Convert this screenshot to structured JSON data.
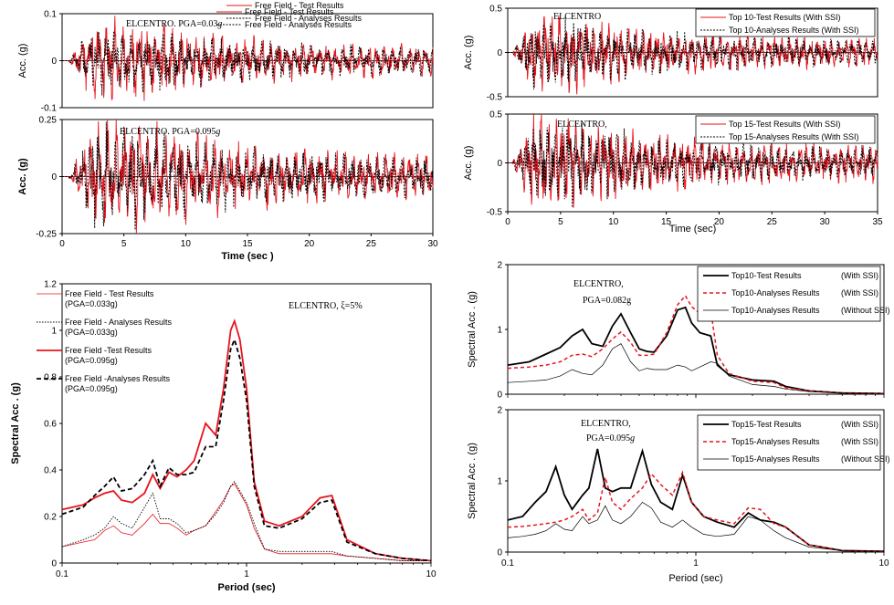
{
  "colors": {
    "test": "#e8141e",
    "analysis": "#000000",
    "without_ssi": "#000000"
  },
  "chart_data": [
    {
      "id": "p1",
      "type": "line",
      "ylabel": "Acc. (g)",
      "ylim": [
        -0.1,
        0.1
      ],
      "yticks": [
        "-0.1",
        "0",
        "0.1"
      ],
      "xlim": [
        0,
        30
      ],
      "annotation": "ELCENTRO. PGA=0.03",
      "annotation_sub": "g",
      "series": [
        {
          "name": "Free Field - Test Results",
          "amplitude": 0.07
        },
        {
          "name": "Free Field - Analyses Results",
          "amplitude": 0.06
        }
      ]
    },
    {
      "id": "p2",
      "type": "line",
      "ylabel": "Acc. (g)",
      "xlabel": "Time (sec )",
      "ylim": [
        -0.25,
        0.25
      ],
      "yticks": [
        "-0.25",
        "0",
        "0.25"
      ],
      "xlim": [
        0,
        30
      ],
      "xticks": [
        "0",
        "5",
        "10",
        "15",
        "20",
        "25",
        "30"
      ],
      "annotation": "ELCENTRO. PGA=0.095",
      "annotation_sub": "g",
      "series": [
        {
          "name": "Free Field - Test Results",
          "amplitude": 0.21
        },
        {
          "name": "Free Field - Analyses Results",
          "amplitude": 0.18
        }
      ]
    },
    {
      "id": "p3",
      "type": "line",
      "ylabel": "Acc. (g)",
      "ylim": [
        -0.5,
        0.5
      ],
      "yticks": [
        "-0.5",
        "0",
        "0.5"
      ],
      "xlim": [
        0,
        35
      ],
      "annotation": "ELCENTRO",
      "series": [
        {
          "name": "Top 10-Test Results (With SSI)",
          "amplitude": 0.37
        },
        {
          "name": "Top 10-Analyses Results (With SSI)",
          "amplitude": 0.33
        }
      ]
    },
    {
      "id": "p4",
      "type": "line",
      "ylabel": "Acc. (g)",
      "xlabel": "Time  (sec)",
      "ylim": [
        -0.5,
        0.5
      ],
      "yticks": [
        "-0.5",
        "0",
        "0.5"
      ],
      "xlim": [
        0,
        35
      ],
      "xticks": [
        "0",
        "5",
        "10",
        "15",
        "20",
        "25",
        "30",
        "35"
      ],
      "annotation": "ELCENTRO,",
      "series": [
        {
          "name": "Top 15-Test Results  (With SSI)",
          "amplitude": 0.42
        },
        {
          "name": "Top 15-Analyses Results  (With SSI)",
          "amplitude": 0.36
        }
      ]
    },
    {
      "id": "p5",
      "type": "line",
      "xscale": "log",
      "ylabel": "Spectral Acc . (g)",
      "xlabel": "Period (sec)",
      "ylim": [
        0,
        1.2
      ],
      "yticks": [
        "0",
        "0.2",
        "0.4",
        "0.6",
        "0.8",
        "1",
        "1.2"
      ],
      "xlim": [
        0.1,
        10
      ],
      "xticks": [
        "0.1",
        "1",
        "10"
      ],
      "annotation": "ELCENTRO, ξ=5%",
      "series": [
        {
          "name": "Free Field - Test Results",
          "name2": "(PGA=0.033g)",
          "x": [
            0.1,
            0.13,
            0.15,
            0.17,
            0.19,
            0.21,
            0.24,
            0.28,
            0.31,
            0.34,
            0.38,
            0.42,
            0.47,
            0.52,
            0.6,
            0.68,
            0.75,
            0.82,
            0.86,
            0.92,
            1.0,
            1.1,
            1.25,
            1.5,
            2.0,
            2.5,
            2.9,
            3.5,
            5.0,
            7.0,
            10.0
          ],
          "y": [
            0.07,
            0.09,
            0.1,
            0.14,
            0.16,
            0.13,
            0.12,
            0.17,
            0.21,
            0.17,
            0.17,
            0.15,
            0.12,
            0.14,
            0.16,
            0.22,
            0.27,
            0.33,
            0.34,
            0.3,
            0.25,
            0.15,
            0.06,
            0.04,
            0.04,
            0.04,
            0.04,
            0.03,
            0.02,
            0.01,
            0.01
          ]
        },
        {
          "name": "Free Field - Analyses Results",
          "name2": "(PGA=0.033g)",
          "x": [
            0.1,
            0.13,
            0.15,
            0.17,
            0.19,
            0.21,
            0.24,
            0.28,
            0.31,
            0.34,
            0.38,
            0.42,
            0.47,
            0.52,
            0.6,
            0.68,
            0.75,
            0.82,
            0.86,
            0.92,
            1.0,
            1.1,
            1.25,
            1.5,
            2.0,
            2.5,
            2.9,
            3.5,
            5.0,
            7.0,
            10.0
          ],
          "y": [
            0.07,
            0.1,
            0.12,
            0.15,
            0.2,
            0.17,
            0.15,
            0.24,
            0.3,
            0.19,
            0.19,
            0.17,
            0.13,
            0.14,
            0.16,
            0.21,
            0.26,
            0.33,
            0.35,
            0.31,
            0.26,
            0.17,
            0.06,
            0.05,
            0.05,
            0.05,
            0.05,
            0.03,
            0.02,
            0.01,
            0.01
          ]
        },
        {
          "name": "Free Field -Test Results",
          "name2": "(PGA=0.095g)",
          "x": [
            0.1,
            0.13,
            0.15,
            0.17,
            0.19,
            0.21,
            0.24,
            0.28,
            0.31,
            0.34,
            0.38,
            0.42,
            0.47,
            0.52,
            0.6,
            0.68,
            0.75,
            0.82,
            0.86,
            0.92,
            1.0,
            1.1,
            1.25,
            1.5,
            2.0,
            2.5,
            2.9,
            3.5,
            5.0,
            7.0,
            10.0
          ],
          "y": [
            0.23,
            0.25,
            0.28,
            0.3,
            0.31,
            0.27,
            0.26,
            0.3,
            0.38,
            0.32,
            0.39,
            0.37,
            0.4,
            0.44,
            0.6,
            0.55,
            0.75,
            1.0,
            1.04,
            0.96,
            0.75,
            0.35,
            0.18,
            0.16,
            0.2,
            0.28,
            0.29,
            0.1,
            0.04,
            0.02,
            0.01
          ]
        },
        {
          "name": "Free Field -Analyses Results",
          "name2": "(PGA=0.095g)",
          "x": [
            0.1,
            0.13,
            0.15,
            0.17,
            0.19,
            0.21,
            0.24,
            0.28,
            0.31,
            0.34,
            0.38,
            0.42,
            0.47,
            0.52,
            0.6,
            0.68,
            0.75,
            0.82,
            0.86,
            0.92,
            1.0,
            1.1,
            1.25,
            1.5,
            2.0,
            2.5,
            2.9,
            3.5,
            5.0,
            7.0,
            10.0
          ],
          "y": [
            0.21,
            0.24,
            0.29,
            0.33,
            0.37,
            0.31,
            0.32,
            0.38,
            0.44,
            0.33,
            0.41,
            0.38,
            0.38,
            0.39,
            0.5,
            0.5,
            0.7,
            0.92,
            0.96,
            0.88,
            0.7,
            0.33,
            0.16,
            0.15,
            0.19,
            0.26,
            0.27,
            0.09,
            0.04,
            0.02,
            0.01
          ]
        }
      ]
    },
    {
      "id": "p6",
      "type": "line",
      "xscale": "log",
      "ylabel": "Spectral Acc . (g)",
      "ylim": [
        0,
        2
      ],
      "yticks": [
        "0",
        "1",
        "2"
      ],
      "xlim": [
        0.1,
        10
      ],
      "xticks": [],
      "annotation": "ELCENTRO,",
      "annotation2": "PGA=0.082g",
      "series": [
        {
          "name": "Top10-Test Results",
          "name2": "(With SSI)",
          "x": [
            0.1,
            0.13,
            0.16,
            0.19,
            0.22,
            0.25,
            0.28,
            0.32,
            0.36,
            0.4,
            0.45,
            0.5,
            0.55,
            0.6,
            0.7,
            0.8,
            0.88,
            0.95,
            1.05,
            1.2,
            1.3,
            1.5,
            2.0,
            2.6,
            3.0,
            4.0,
            6.0,
            10.0
          ],
          "y": [
            0.45,
            0.5,
            0.62,
            0.72,
            0.9,
            1.0,
            0.78,
            0.74,
            1.05,
            1.24,
            0.95,
            0.7,
            0.66,
            0.65,
            0.9,
            1.3,
            1.34,
            1.1,
            0.95,
            0.9,
            0.45,
            0.3,
            0.22,
            0.2,
            0.12,
            0.05,
            0.02,
            0.01
          ]
        },
        {
          "name": "Top10-Analyses Results",
          "name2": "(With SSI)",
          "x": [
            0.1,
            0.13,
            0.16,
            0.19,
            0.22,
            0.25,
            0.28,
            0.32,
            0.36,
            0.4,
            0.45,
            0.5,
            0.55,
            0.6,
            0.7,
            0.8,
            0.88,
            0.95,
            1.05,
            1.2,
            1.3,
            1.5,
            2.0,
            2.6,
            3.0,
            4.0,
            6.0,
            10.0
          ],
          "y": [
            0.4,
            0.42,
            0.45,
            0.5,
            0.6,
            0.62,
            0.58,
            0.7,
            0.85,
            0.96,
            0.8,
            0.6,
            0.6,
            0.62,
            0.95,
            1.38,
            1.52,
            1.35,
            1.25,
            1.3,
            0.6,
            0.32,
            0.2,
            0.18,
            0.1,
            0.05,
            0.02,
            0.01
          ]
        },
        {
          "name": "Top10-Analyses Results",
          "name2": "(Without SSI)",
          "x": [
            0.1,
            0.13,
            0.16,
            0.19,
            0.22,
            0.25,
            0.28,
            0.32,
            0.36,
            0.4,
            0.45,
            0.5,
            0.55,
            0.6,
            0.7,
            0.8,
            0.88,
            0.95,
            1.05,
            1.2,
            1.3,
            1.5,
            2.0,
            2.6,
            3.0,
            4.0,
            6.0,
            10.0
          ],
          "y": [
            0.18,
            0.2,
            0.22,
            0.28,
            0.38,
            0.32,
            0.3,
            0.45,
            0.7,
            0.78,
            0.5,
            0.36,
            0.4,
            0.38,
            0.38,
            0.45,
            0.42,
            0.36,
            0.42,
            0.5,
            0.48,
            0.28,
            0.15,
            0.12,
            0.08,
            0.04,
            0.02,
            0.01
          ]
        }
      ]
    },
    {
      "id": "p7",
      "type": "line",
      "xscale": "log",
      "ylabel": "Spectral Acc . (g)",
      "xlabel": "Period (sec)",
      "ylim": [
        0,
        2
      ],
      "yticks": [
        "0",
        "1",
        "2"
      ],
      "xlim": [
        0.1,
        10
      ],
      "xticks": [
        "0.1",
        "1",
        "10"
      ],
      "annotation": "ELCENTRO,",
      "annotation2": "PGA=0.095",
      "annotation2_sub": "g",
      "series": [
        {
          "name": "Top15-Test Results",
          "name2": "(With SSI)",
          "x": [
            0.1,
            0.12,
            0.14,
            0.16,
            0.18,
            0.2,
            0.22,
            0.25,
            0.27,
            0.3,
            0.33,
            0.36,
            0.4,
            0.45,
            0.52,
            0.58,
            0.65,
            0.75,
            0.85,
            0.95,
            1.1,
            1.3,
            1.6,
            1.9,
            2.2,
            2.6,
            3.0,
            4.0,
            6.0,
            10.0
          ],
          "y": [
            0.45,
            0.5,
            0.7,
            0.85,
            1.2,
            0.8,
            0.6,
            0.8,
            0.9,
            1.45,
            0.9,
            0.85,
            0.9,
            0.9,
            1.42,
            0.95,
            0.7,
            0.6,
            1.08,
            0.7,
            0.5,
            0.42,
            0.35,
            0.55,
            0.45,
            0.42,
            0.35,
            0.1,
            0.02,
            0.01
          ]
        },
        {
          "name": "Top15-Analyses Results",
          "name2": "(With SSI)",
          "x": [
            0.1,
            0.12,
            0.14,
            0.16,
            0.18,
            0.2,
            0.22,
            0.25,
            0.27,
            0.3,
            0.33,
            0.36,
            0.4,
            0.45,
            0.52,
            0.58,
            0.65,
            0.75,
            0.85,
            0.95,
            1.1,
            1.3,
            1.6,
            1.9,
            2.2,
            2.6,
            3.0,
            4.0,
            6.0,
            10.0
          ],
          "y": [
            0.35,
            0.36,
            0.38,
            0.4,
            0.42,
            0.45,
            0.5,
            0.6,
            0.45,
            0.55,
            1.05,
            0.7,
            0.6,
            0.75,
            0.9,
            1.1,
            0.95,
            0.8,
            1.12,
            0.7,
            0.5,
            0.45,
            0.4,
            0.62,
            0.6,
            0.4,
            0.35,
            0.1,
            0.02,
            0.01
          ]
        },
        {
          "name": "Top15-Analyses Results",
          "name2": "(Without SSI)",
          "x": [
            0.1,
            0.12,
            0.14,
            0.16,
            0.18,
            0.2,
            0.22,
            0.25,
            0.27,
            0.3,
            0.33,
            0.36,
            0.4,
            0.45,
            0.52,
            0.58,
            0.65,
            0.75,
            0.85,
            0.95,
            1.1,
            1.3,
            1.6,
            1.9,
            2.2,
            2.6,
            3.0,
            4.0,
            6.0,
            10.0
          ],
          "y": [
            0.2,
            0.22,
            0.25,
            0.3,
            0.4,
            0.32,
            0.3,
            0.5,
            0.4,
            0.45,
            0.65,
            0.45,
            0.4,
            0.5,
            0.7,
            0.62,
            0.42,
            0.35,
            0.45,
            0.35,
            0.25,
            0.22,
            0.25,
            0.5,
            0.45,
            0.3,
            0.2,
            0.07,
            0.02,
            0.01
          ]
        }
      ]
    }
  ]
}
